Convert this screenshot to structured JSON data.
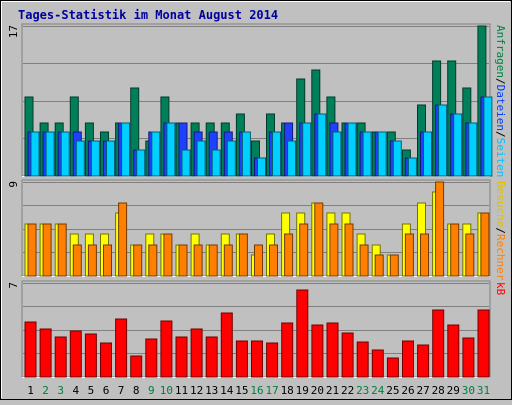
{
  "chart_data": {
    "type": "bar",
    "title": "Tages-Statistik im Monat August 2014",
    "categories": [
      "1",
      "2",
      "3",
      "4",
      "5",
      "6",
      "7",
      "8",
      "9",
      "10",
      "11",
      "12",
      "13",
      "14",
      "15",
      "16",
      "17",
      "18",
      "19",
      "20",
      "21",
      "22",
      "23",
      "24",
      "25",
      "26",
      "27",
      "28",
      "29",
      "30",
      "31"
    ],
    "weekend_days": [
      "2",
      "3",
      "9",
      "10",
      "16",
      "17",
      "23",
      "24",
      "30",
      "31"
    ],
    "grid": true,
    "panels": [
      {
        "id": "top",
        "axis_max_label": "17",
        "ylim": [
          0,
          17
        ],
        "legend": [
          {
            "text": "Anfragen",
            "color": "#008040"
          },
          {
            "text": "/",
            "color": "#000000"
          },
          {
            "text": "Dateien",
            "color": "#0040ff"
          },
          {
            "text": "/",
            "color": "#000000"
          },
          {
            "text": "Seiten",
            "color": "#00c0ff"
          }
        ],
        "series": [
          {
            "name": "Anfragen",
            "color": "#00805a",
            "values": [
              9,
              6,
              6,
              9,
              6,
              5,
              6,
              10,
              4,
              9,
              6,
              6,
              6,
              6,
              7,
              4,
              7,
              6,
              11,
              12,
              9,
              6,
              6,
              5,
              5,
              3,
              8,
              13,
              13,
              10,
              17
            ]
          },
          {
            "name": "Dateien",
            "color": "#2040ff",
            "values": [
              5,
              5,
              5,
              5,
              4,
              4,
              6,
              3,
              5,
              6,
              6,
              5,
              5,
              5,
              5,
              2,
              5,
              6,
              6,
              7,
              6,
              6,
              5,
              5,
              4,
              2,
              5,
              8,
              7,
              6,
              9
            ]
          },
          {
            "name": "Seiten",
            "color": "#00d0ff",
            "values": [
              5,
              5,
              5,
              4,
              4,
              4,
              6,
              3,
              5,
              6,
              3,
              4,
              3,
              4,
              5,
              2,
              5,
              4,
              6,
              7,
              5,
              6,
              5,
              5,
              4,
              2,
              5,
              8,
              7,
              6,
              9
            ]
          }
        ]
      },
      {
        "id": "middle",
        "axis_max_label": "9",
        "ylim": [
          0,
          9
        ],
        "legend": [
          {
            "text": "Besuche",
            "color": "#e0c000"
          },
          {
            "text": "/",
            "color": "#000000"
          },
          {
            "text": "Rechner",
            "color": "#ff8000"
          }
        ],
        "series": [
          {
            "name": "Besuche",
            "color": "#ffff00",
            "values": [
              5,
              5,
              5,
              4,
              4,
              4,
              6,
              3,
              4,
              4,
              3,
              4,
              3,
              4,
              4,
              2,
              4,
              6,
              6,
              7,
              6,
              6,
              4,
              3,
              2,
              5,
              7,
              8,
              5,
              5,
              6
            ]
          },
          {
            "name": "Rechner",
            "color": "#ff8000",
            "values": [
              5,
              5,
              5,
              3,
              3,
              3,
              7,
              3,
              3,
              4,
              3,
              3,
              3,
              3,
              4,
              3,
              3,
              4,
              5,
              7,
              5,
              5,
              3,
              2,
              2,
              4,
              4,
              9,
              5,
              4,
              6
            ]
          }
        ]
      },
      {
        "id": "bottom",
        "axis_max_label": "7",
        "ylim": [
          0,
          7
        ],
        "legend": [
          {
            "text": "kB",
            "color": "#ff0000"
          }
        ],
        "series": [
          {
            "name": "kB",
            "color": "#ff0000",
            "values": [
              4.1,
              3.6,
              3.0,
              3.4,
              3.2,
              2.5,
              4.3,
              1.6,
              2.8,
              4.2,
              3.0,
              3.6,
              3.0,
              4.8,
              2.7,
              2.7,
              2.5,
              4.0,
              6.5,
              3.9,
              4.0,
              3.3,
              2.6,
              2.0,
              1.4,
              2.7,
              2.4,
              5.0,
              3.9,
              2.9,
              5.0
            ]
          }
        ]
      }
    ]
  }
}
